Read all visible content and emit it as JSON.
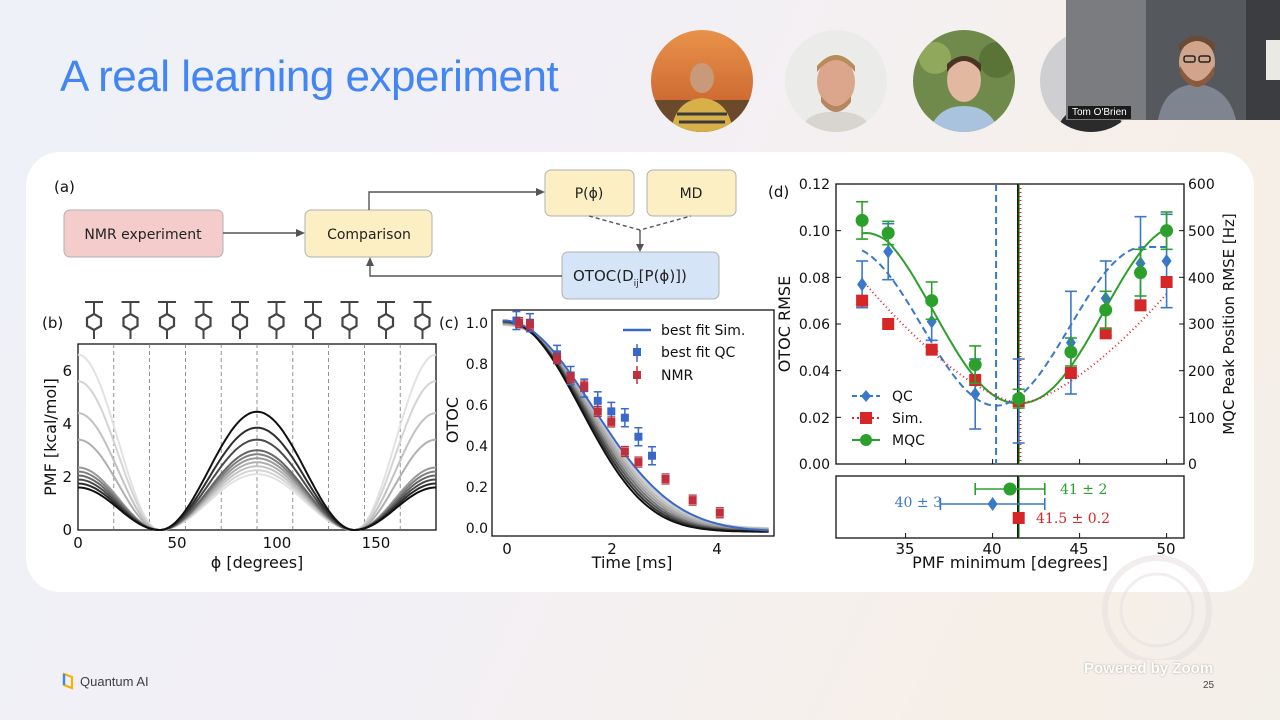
{
  "slide": {
    "title": "A real learning experiment",
    "footer_brand": "Quantum AI",
    "page_number": "25",
    "zoom_watermark": "Powered by Zoom"
  },
  "participants": [
    {
      "name": "",
      "avatar": "person-photo"
    },
    {
      "name": "",
      "avatar": "person-photo"
    },
    {
      "name": "",
      "avatar": "person-photo"
    },
    {
      "name": "",
      "avatar": "person-photo"
    }
  ],
  "speaker_video": {
    "name": "Tom O'Brien"
  },
  "figure": {
    "panel_a": {
      "label": "(a)",
      "nodes": {
        "nmr": "NMR experiment",
        "comparison": "Comparison",
        "pphi": "P(ϕ)",
        "md": "MD",
        "otoc": "OTOC(D",
        "otoc_sub": "ij",
        "otoc_end": "[P(ϕ)])"
      },
      "colors": {
        "nmr": "#f4cccc",
        "comparison": "#fcefc4",
        "otoc": "#d6e4f7"
      }
    },
    "panel_b": {
      "label": "(b)",
      "ylabel": "PMF [kcal/mol]",
      "xlabel": "ϕ [degrees]",
      "xticks": [
        "0",
        "50",
        "100",
        "150"
      ],
      "yticks": [
        "0",
        "2",
        "4",
        "6"
      ]
    },
    "panel_c": {
      "label": "(c)",
      "ylabel": "OTOC",
      "xlabel": "Time [ms]",
      "xticks": [
        "0",
        "2",
        "4"
      ],
      "yticks": [
        "0.0",
        "0.2",
        "0.4",
        "0.6",
        "0.8",
        "1.0"
      ],
      "legend": [
        "best fit Sim.",
        "best fit QC",
        "NMR"
      ]
    },
    "panel_d": {
      "label": "(d)",
      "ylabel_left": "OTOC RMSE",
      "ylabel_right": "MQC Peak Position RMSE [Hz]",
      "xlabel": "PMF minimum [degrees]",
      "yticks_left": [
        "0.00",
        "0.02",
        "0.04",
        "0.06",
        "0.08",
        "0.10",
        "0.12"
      ],
      "yticks_right": [
        "0",
        "100",
        "200",
        "300",
        "400",
        "500",
        "600"
      ],
      "xticks": [
        "35",
        "40",
        "45",
        "50"
      ],
      "legend": [
        "QC",
        "Sim.",
        "MQC"
      ],
      "inset_labels": {
        "qc": "40 ± 3",
        "mqc": "41 ± 2",
        "sim": "41.5 ± 0.2"
      }
    },
    "colors": {
      "qc": "#3a78c9",
      "sim": "#d62728",
      "mqc": "#2ca02c"
    }
  },
  "chart_data": [
    {
      "type": "line",
      "title": "",
      "xlabel": "ϕ [degrees]",
      "ylabel": "PMF [kcal/mol]",
      "xlim": [
        0,
        180
      ],
      "ylim": [
        0,
        7
      ],
      "series": [
        {
          "barrier": 4.45,
          "edge": 1.6,
          "shade": "#111111"
        },
        {
          "barrier": 3.85,
          "edge": 1.75,
          "shade": "#2e2e2e"
        },
        {
          "barrier": 3.4,
          "edge": 1.9,
          "shade": "#4a4a4a"
        },
        {
          "barrier": 3.0,
          "edge": 2.05,
          "shade": "#666666"
        },
        {
          "barrier": 2.85,
          "edge": 2.2,
          "shade": "#808080"
        },
        {
          "barrier": 2.7,
          "edge": 2.35,
          "shade": "#999999"
        },
        {
          "barrier": 2.55,
          "edge": 3.4,
          "shade": "#b0b0b0"
        },
        {
          "barrier": 2.4,
          "edge": 4.4,
          "shade": "#c2c2c2"
        },
        {
          "barrier": 2.25,
          "edge": 5.6,
          "shade": "#d4d4d4"
        },
        {
          "barrier": 2.1,
          "edge": 6.6,
          "shade": "#e2e2e2"
        }
      ],
      "minimum_deg": 41,
      "dashed_gridlines_deg": [
        18,
        36,
        54,
        72,
        90,
        108,
        126,
        144,
        162
      ]
    },
    {
      "type": "line",
      "title": "",
      "xlabel": "Time [ms]",
      "ylabel": "OTOC",
      "xlim": [
        -0.2,
        5
      ],
      "ylim": [
        -0.02,
        1.05
      ],
      "nmr": {
        "x": [
          0.3,
          0.5,
          1.0,
          1.25,
          1.5,
          1.75,
          2.0,
          2.25,
          2.5,
          3.0,
          3.5,
          4.0
        ],
        "y": [
          0.99,
          0.98,
          0.82,
          0.73,
          0.69,
          0.57,
          0.52,
          0.38,
          0.33,
          0.25,
          0.15,
          0.09
        ]
      },
      "qc": {
        "x": [
          0.25,
          0.5,
          1.0,
          1.25,
          1.5,
          1.75,
          2.0,
          2.25,
          2.5,
          2.75
        ],
        "y": [
          1.0,
          0.99,
          0.84,
          0.74,
          0.68,
          0.62,
          0.57,
          0.54,
          0.45,
          0.36
        ]
      },
      "curve_spread": [
        0.0,
        0.05,
        0.1,
        0.15,
        0.2,
        0.25,
        0.3,
        0.35
      ]
    },
    {
      "type": "scatter",
      "title": "",
      "xlabel": "PMF minimum [degrees]",
      "ylabel": "OTOC RMSE",
      "xlim": [
        31,
        51
      ],
      "ylim": [
        0,
        0.12
      ],
      "x": [
        32.5,
        34,
        36.5,
        39,
        41.5,
        44.5,
        46.5,
        48.5,
        50
      ],
      "qc": {
        "y": [
          0.077,
          0.091,
          0.061,
          0.03,
          0.027,
          0.052,
          0.071,
          0.086,
          0.087
        ],
        "err": [
          0.01,
          0.012,
          0.008,
          0.015,
          0.018,
          0.022,
          0.016,
          0.02,
          0.02
        ]
      },
      "sim": {
        "y": [
          0.07,
          0.06,
          0.049,
          0.036,
          0.027,
          0.039,
          0.056,
          0.068,
          0.078
        ],
        "err": [
          0.002,
          0.002,
          0.002,
          0.002,
          0.002,
          0.002,
          0.002,
          0.002,
          0.002
        ]
      },
      "mqc_hz": {
        "y": [
          522,
          495,
          350,
          213,
          140,
          240,
          330,
          410,
          500
        ],
        "err": [
          40,
          25,
          40,
          40,
          20,
          30,
          40,
          50,
          40
        ]
      },
      "vlines": {
        "qc": 40.2,
        "mqc": 41.5,
        "sim": 41.6
      },
      "inset": {
        "qc": [
          40,
          3
        ],
        "mqc": [
          41,
          2
        ],
        "sim": [
          41.5,
          0.2
        ]
      }
    }
  ]
}
